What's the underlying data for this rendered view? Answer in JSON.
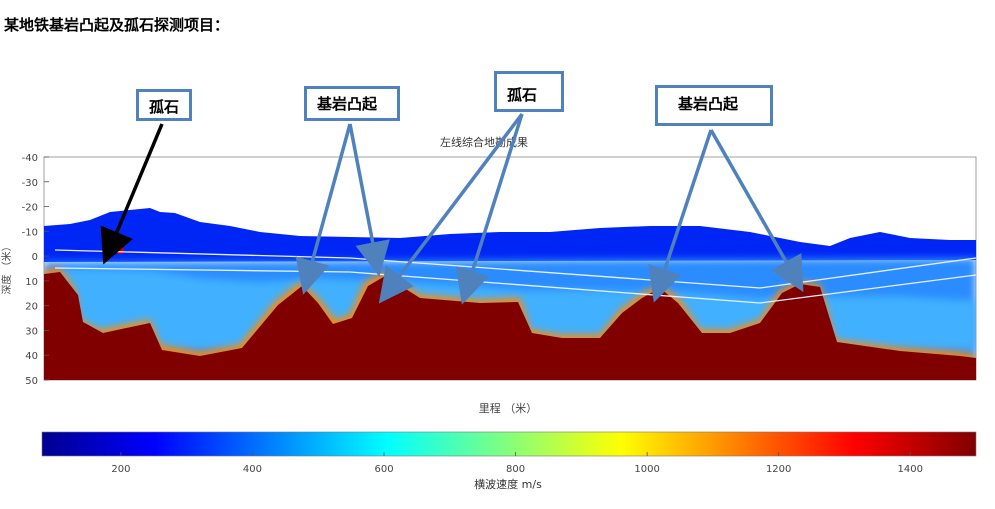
{
  "heading": "某地铁基岩凸起及孤石探测项目：",
  "callouts": {
    "boulder_1": "孤石",
    "bedrock_1": "基岩凸起",
    "boulder_2": "孤石",
    "bedrock_2": "基岩凸起"
  },
  "colors": {
    "annotation": "#4f81bd",
    "arrow_black": "#000000",
    "bedrock": "#800000"
  },
  "chart_data": {
    "type": "heatmap",
    "title": "左线综合地勘成果",
    "xlabel": "里程 （米）",
    "ylabel": "深度 （米）",
    "ylim": [
      -40,
      50
    ],
    "y_ticks": [
      "-40",
      "-30",
      "-20",
      "-10",
      "0",
      "10",
      "20",
      "30",
      "40",
      "50"
    ],
    "colorbar": {
      "label": "横波速度 m/s",
      "range": [
        80,
        1500
      ],
      "ticks": [
        "200",
        "400",
        "600",
        "800",
        "1000",
        "1200",
        "1400"
      ]
    }
  }
}
